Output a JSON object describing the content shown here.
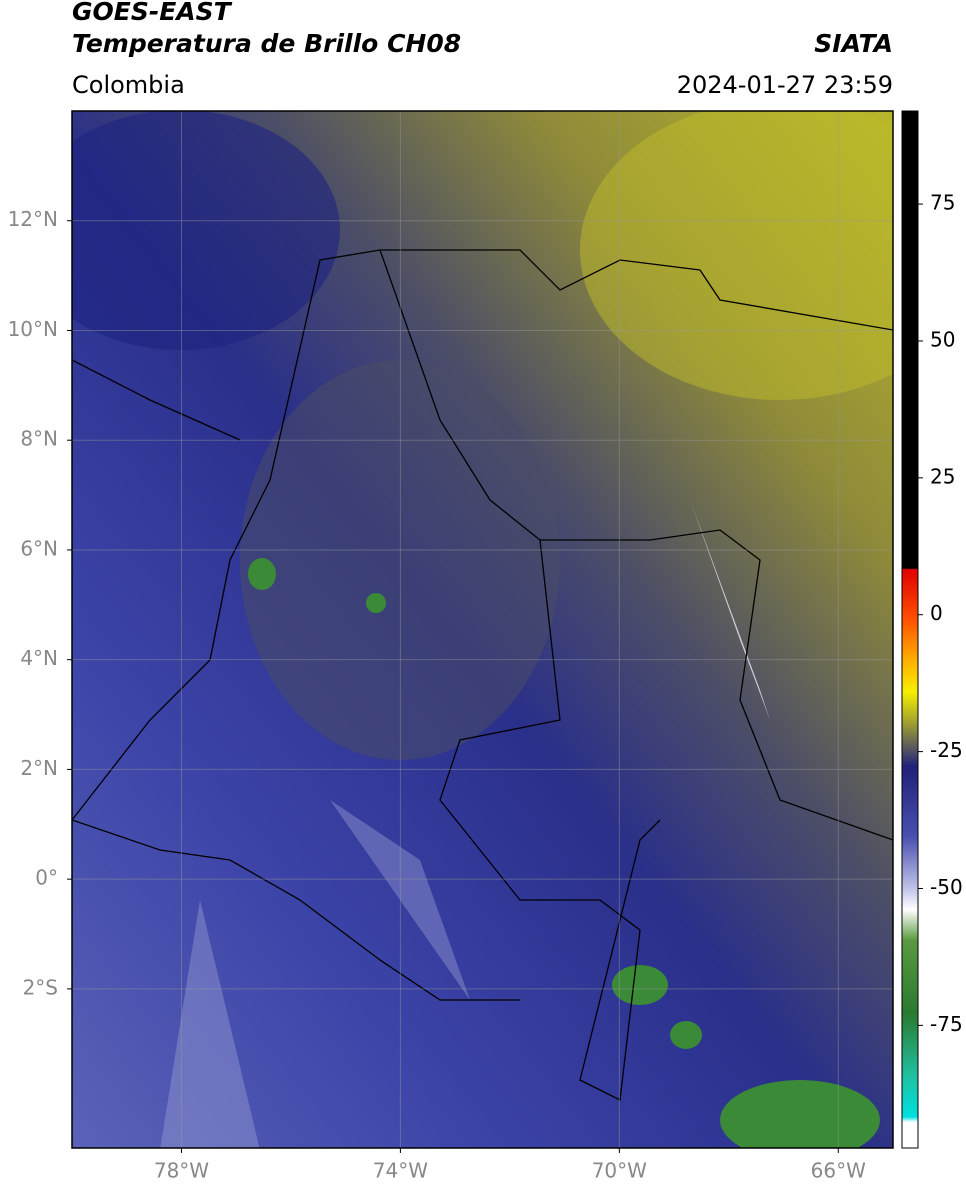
{
  "header": {
    "title_line1": "GOES-EAST",
    "title_line2": "Temperatura de Brillo CH08",
    "source": "SIATA",
    "region": "Colombia",
    "timestamp": "2024-01-27 23:59"
  },
  "map": {
    "xlim": [
      -80,
      -65
    ],
    "ylim": [
      -4.9,
      14
    ],
    "xticks": [
      {
        "value": -78,
        "label": "78°W"
      },
      {
        "value": -74,
        "label": "74°W"
      },
      {
        "value": -70,
        "label": "70°W"
      },
      {
        "value": -66,
        "label": "66°W"
      }
    ],
    "yticks": [
      {
        "value": 12,
        "label": "12°N"
      },
      {
        "value": 10,
        "label": "10°N"
      },
      {
        "value": 8,
        "label": "8°N"
      },
      {
        "value": 6,
        "label": "6°N"
      },
      {
        "value": 4,
        "label": "4°N"
      },
      {
        "value": 2,
        "label": "2°N"
      },
      {
        "value": 0,
        "label": "0°"
      },
      {
        "value": -2,
        "label": "2°S"
      }
    ]
  },
  "colorbar": {
    "lim": [
      -97.4,
      92
    ],
    "ticks": [
      75,
      50,
      25,
      0,
      -25,
      -50,
      -75
    ]
  }
}
